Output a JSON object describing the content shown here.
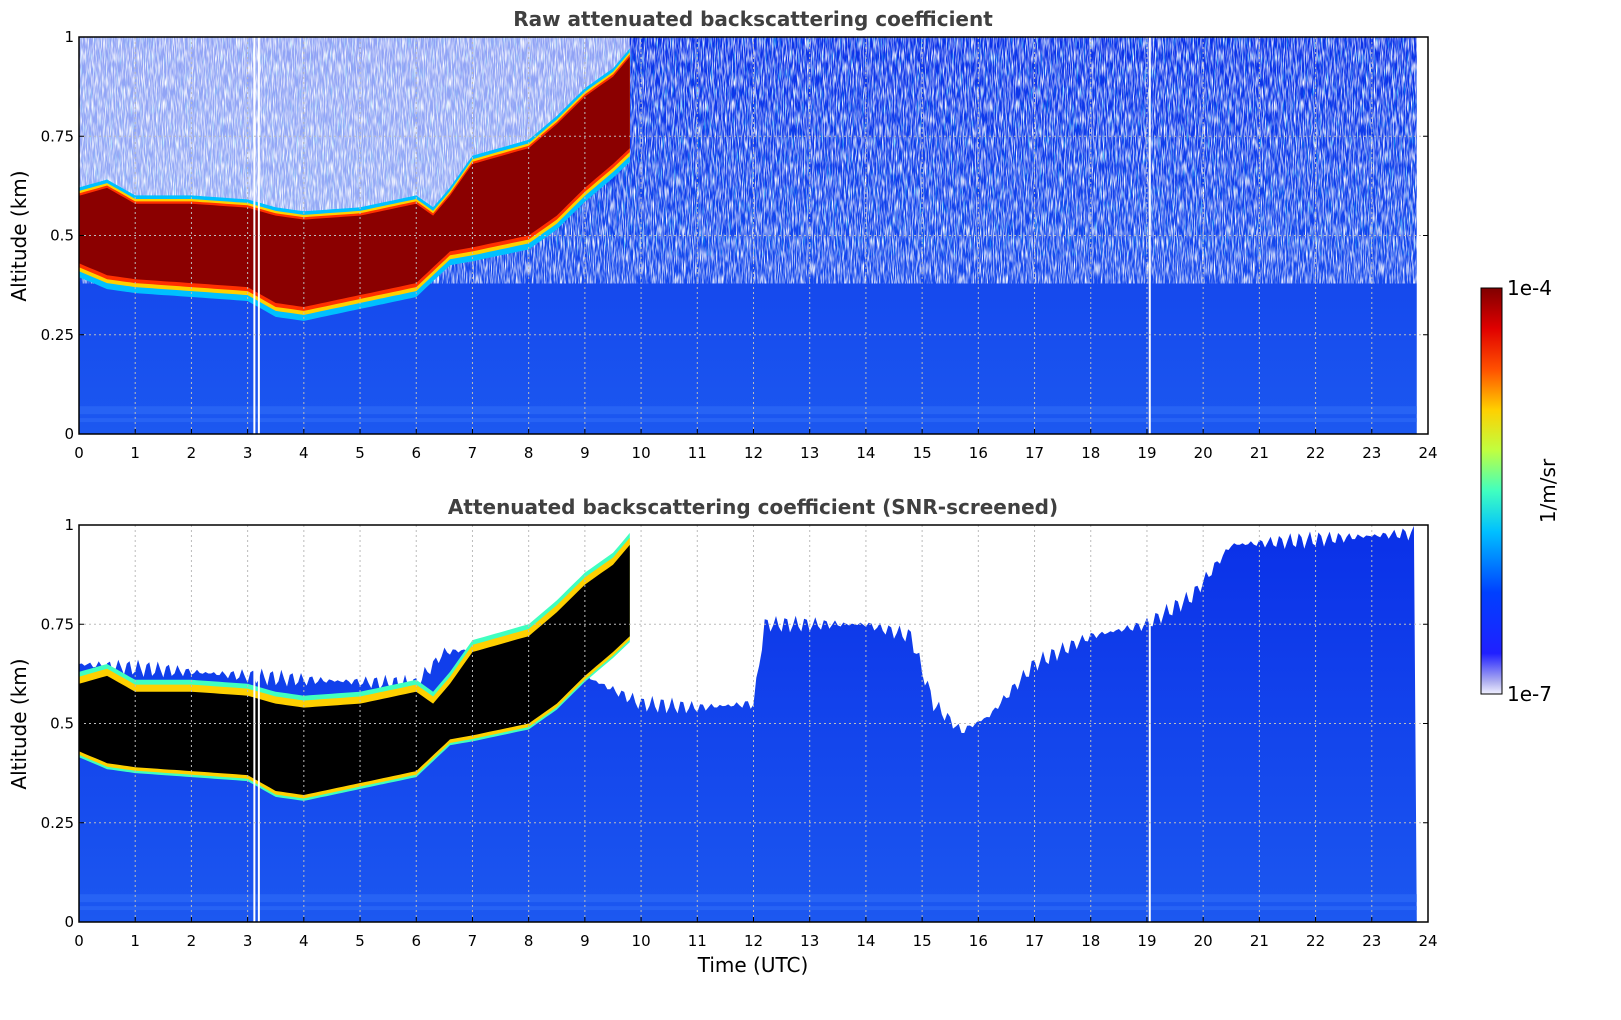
{
  "chart_data": [
    {
      "type": "heatmap",
      "title": "Raw attenuated backscattering coefficient",
      "ylabel": "Altitude (km)",
      "xlabel": "",
      "xlim": [
        0,
        24
      ],
      "ylim": [
        0,
        1
      ],
      "xticks": [
        "0",
        "1",
        "2",
        "3",
        "4",
        "5",
        "6",
        "7",
        "8",
        "9",
        "10",
        "11",
        "12",
        "13",
        "14",
        "15",
        "16",
        "17",
        "18",
        "19",
        "20",
        "21",
        "22",
        "23",
        "24"
      ],
      "yticks": [
        "0",
        "0.25",
        "0.5",
        "0.75",
        "1"
      ],
      "grid": true,
      "data_end_time": 23.8,
      "gaps_utc": [
        3.12,
        3.2,
        19.05
      ],
      "cloud_layer": {
        "time": [
          0,
          0.5,
          1,
          2,
          3,
          3.5,
          4,
          5,
          6,
          6.3,
          6.6,
          7,
          8,
          8.5,
          9,
          9.5,
          9.8
        ],
        "base_km": [
          0.43,
          0.4,
          0.39,
          0.38,
          0.37,
          0.33,
          0.32,
          0.35,
          0.38,
          0.42,
          0.46,
          0.47,
          0.5,
          0.55,
          0.62,
          0.68,
          0.72
        ],
        "top_km": [
          0.6,
          0.62,
          0.58,
          0.58,
          0.57,
          0.55,
          0.54,
          0.55,
          0.58,
          0.55,
          0.6,
          0.68,
          0.72,
          0.78,
          0.85,
          0.9,
          0.95
        ]
      }
    },
    {
      "type": "heatmap",
      "title": "Attenuated backscattering coefficient (SNR-screened)",
      "ylabel": "Altitude (km)",
      "xlabel": "Time (UTC)",
      "xlim": [
        0,
        24
      ],
      "ylim": [
        0,
        1
      ],
      "xticks": [
        "0",
        "1",
        "2",
        "3",
        "4",
        "5",
        "6",
        "7",
        "8",
        "9",
        "10",
        "11",
        "12",
        "13",
        "14",
        "15",
        "16",
        "17",
        "18",
        "19",
        "20",
        "21",
        "22",
        "23",
        "24"
      ],
      "yticks": [
        "0",
        "0.25",
        "0.5",
        "0.75",
        "1"
      ],
      "grid": true,
      "data_end_time": 23.8,
      "gaps_utc": [
        3.12,
        3.2,
        19.05
      ],
      "screen_top": {
        "time": [
          0,
          2,
          4,
          6,
          6.5,
          8,
          9,
          10,
          11,
          12,
          12.2,
          14,
          14.8,
          15.2,
          15.7,
          16.2,
          17,
          18,
          19,
          19.8,
          20.5,
          23.8
        ],
        "top_km": [
          0.65,
          0.63,
          0.61,
          0.6,
          0.68,
          0.7,
          0.62,
          0.55,
          0.54,
          0.55,
          0.75,
          0.75,
          0.72,
          0.55,
          0.48,
          0.52,
          0.65,
          0.72,
          0.75,
          0.82,
          0.95,
          0.98
        ]
      }
    }
  ],
  "colorbar": {
    "label": "1/m/sr",
    "max_label": "1e-4",
    "min_label": "1e-7",
    "colormap": "jet"
  },
  "colors": {
    "clear_sky": "#1040f0",
    "clear_sky_lower": "#1a55ee",
    "cloud_core": "#8b0000",
    "cloud_edge": "#ff8000",
    "screened_cloud": "#000000",
    "grid": "#bbbbbb"
  }
}
